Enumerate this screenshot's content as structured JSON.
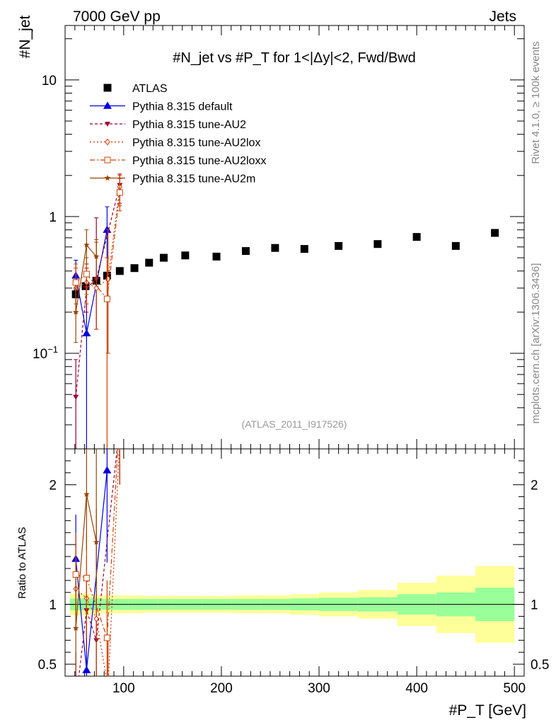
{
  "header": {
    "left": "7000 GeV pp",
    "right": "Jets",
    "ylabel": "#N_jet",
    "title": "#N_jet vs #P_T for 1<|Δy|<2, Fwd/Bwd",
    "side_top": "Rivet 4.1.0, ≥ 100k events",
    "side_bottom": "mcplots.cern.ch [arXiv:1306.3436]",
    "analysis": "(ATLAS_2011_I917526)",
    "ratio_ylabel": "Ratio to ATLAS",
    "xlabel": "#P_T [GeV]"
  },
  "chart_data": {
    "type": "scatter",
    "title": "#N_jet vs #P_T for 1<|Δy|<2, Fwd/Bwd",
    "xlabel": "#P_T [GeV]",
    "ylabel": "#N_jet",
    "xlim": [
      40,
      510
    ],
    "ylim": [
      0.02,
      25
    ],
    "yscale": "log",
    "ratio_ylim": [
      0.4,
      2.3
    ],
    "x_ticks": [
      100,
      200,
      300,
      400,
      500
    ],
    "y_ticks": [
      {
        "v": 0.1,
        "label": "10^-1"
      },
      {
        "v": 1,
        "label": "1"
      },
      {
        "v": 10,
        "label": "10"
      }
    ],
    "ratio_ticks": [
      {
        "v": 0.5,
        "label": "0.5"
      },
      {
        "v": 1,
        "label": "1"
      },
      {
        "v": 2,
        "label": "2"
      }
    ],
    "data": {
      "name": "ATLAS",
      "x": [
        51,
        61,
        72,
        83,
        96,
        111,
        126,
        141,
        163,
        195,
        225,
        255,
        285,
        320,
        360,
        400,
        440,
        480
      ],
      "y": [
        0.27,
        0.31,
        0.34,
        0.37,
        0.4,
        0.42,
        0.46,
        0.5,
        0.52,
        0.51,
        0.56,
        0.59,
        0.58,
        0.61,
        0.63,
        0.71,
        0.61,
        0.76
      ]
    },
    "bands": [
      {
        "x0": 45,
        "x1": 55,
        "inner": 0.05,
        "outer": 0.09
      },
      {
        "x0": 55,
        "x1": 66,
        "inner": 0.05,
        "outer": 0.09
      },
      {
        "x0": 66,
        "x1": 77,
        "inner": 0.05,
        "outer": 0.08
      },
      {
        "x0": 77,
        "x1": 90,
        "inner": 0.045,
        "outer": 0.075
      },
      {
        "x0": 90,
        "x1": 105,
        "inner": 0.045,
        "outer": 0.075
      },
      {
        "x0": 105,
        "x1": 120,
        "inner": 0.045,
        "outer": 0.075
      },
      {
        "x0": 120,
        "x1": 135,
        "inner": 0.045,
        "outer": 0.07
      },
      {
        "x0": 135,
        "x1": 150,
        "inner": 0.045,
        "outer": 0.07
      },
      {
        "x0": 150,
        "x1": 180,
        "inner": 0.045,
        "outer": 0.07
      },
      {
        "x0": 180,
        "x1": 210,
        "inner": 0.045,
        "outer": 0.07
      },
      {
        "x0": 210,
        "x1": 240,
        "inner": 0.045,
        "outer": 0.075
      },
      {
        "x0": 240,
        "x1": 270,
        "inner": 0.045,
        "outer": 0.075
      },
      {
        "x0": 270,
        "x1": 300,
        "inner": 0.05,
        "outer": 0.085
      },
      {
        "x0": 300,
        "x1": 340,
        "inner": 0.055,
        "outer": 0.1
      },
      {
        "x0": 340,
        "x1": 380,
        "inner": 0.06,
        "outer": 0.12
      },
      {
        "x0": 380,
        "x1": 420,
        "inner": 0.085,
        "outer": 0.18
      },
      {
        "x0": 420,
        "x1": 460,
        "inner": 0.1,
        "outer": 0.24
      },
      {
        "x0": 460,
        "x1": 500,
        "inner": 0.14,
        "outer": 0.32
      }
    ],
    "series": [
      {
        "name": "Pythia 8.315 default",
        "color": "#0000dd",
        "dash": "",
        "marker": "triangle-up",
        "x": [
          51,
          62,
          83
        ],
        "y": [
          0.37,
          0.14,
          0.8
        ],
        "err": [
          [
            0.29,
            0.48
          ],
          [
            0.02,
            0.31
          ],
          [
            0.5,
            1.18
          ]
        ],
        "ratio": [
          1.38,
          0.45,
          2.12
        ],
        "ratio_err": [
          [
            1.0,
            1.75
          ],
          [
            0.05,
            1.0
          ],
          [
            1.35,
            2.3
          ]
        ]
      },
      {
        "name": "Pythia 8.315 tune-AU2",
        "color": "#990033",
        "dash": "4,3",
        "marker": "triangle-down",
        "x": [
          51,
          62,
          72,
          96
        ],
        "y": [
          0.048,
          0.3,
          0.35,
          1.7
        ],
        "err": [
          [
            0.005,
            0.09
          ],
          [
            0.2,
            0.42
          ],
          [
            0.15,
            0.98
          ],
          [
            1.25,
            2.05
          ]
        ],
        "ratio": [
          0.18,
          0.95,
          0.7,
          2.5
        ],
        "ratio_err": [
          [
            0.02,
            0.6
          ],
          [
            0.6,
            1.25
          ],
          [
            0.3,
            1.6
          ],
          [
            2.0,
            3.0
          ]
        ]
      },
      {
        "name": "Pythia 8.315 tune-AU2lox",
        "color": "#cc3300",
        "dash": "2,3",
        "marker": "diamond-open",
        "x": [
          51,
          62,
          72,
          84,
          96
        ],
        "y": [
          0.3,
          0.33,
          0.3,
          0.35,
          1.65
        ],
        "err": [
          [
            0.2,
            0.42
          ],
          [
            0.23,
            0.45
          ],
          [
            0.15,
            0.65
          ],
          [
            0.1,
            0.8
          ],
          [
            1.2,
            2.0
          ]
        ],
        "ratio": [
          1.13,
          1.05,
          0.88,
          0.3,
          2.4
        ],
        "ratio_err": [
          [
            0.8,
            1.45
          ],
          [
            0.72,
            1.4
          ],
          [
            0.4,
            1.8
          ],
          [
            0.05,
            0.7
          ],
          [
            2.0,
            3.0
          ]
        ]
      },
      {
        "name": "Pythia 8.315 tune-AU2loxx",
        "color": "#cc4400",
        "dash": "7,3,2,3",
        "marker": "square-open",
        "x": [
          51,
          62,
          83,
          96
        ],
        "y": [
          0.33,
          0.38,
          0.25,
          1.5
        ],
        "err": [
          [
            0.23,
            0.45
          ],
          [
            0.27,
            0.5
          ],
          [
            0.02,
            0.5
          ],
          [
            1.1,
            1.9
          ]
        ],
        "ratio": [
          1.25,
          1.22,
          0.72,
          2.6
        ],
        "ratio_err": [
          [
            0.9,
            1.6
          ],
          [
            0.85,
            1.6
          ],
          [
            0.1,
            1.2
          ],
          [
            2.2,
            3.0
          ]
        ]
      },
      {
        "name": "Pythia 8.315 tune-AU2m",
        "color": "#994400",
        "dash": "",
        "marker": "star",
        "x": [
          51,
          62,
          72
        ],
        "y": [
          0.2,
          0.62,
          0.51
        ],
        "err": [
          [
            0.12,
            0.3
          ],
          [
            0.45,
            0.8
          ],
          [
            0.35,
            0.68
          ]
        ],
        "ratio": [
          0.8,
          1.92,
          1.52
        ],
        "ratio_err": [
          [
            0.43,
            1.2
          ],
          [
            1.45,
            2.3
          ],
          [
            1.0,
            2.3
          ]
        ]
      }
    ],
    "legend_position": "top-left"
  }
}
